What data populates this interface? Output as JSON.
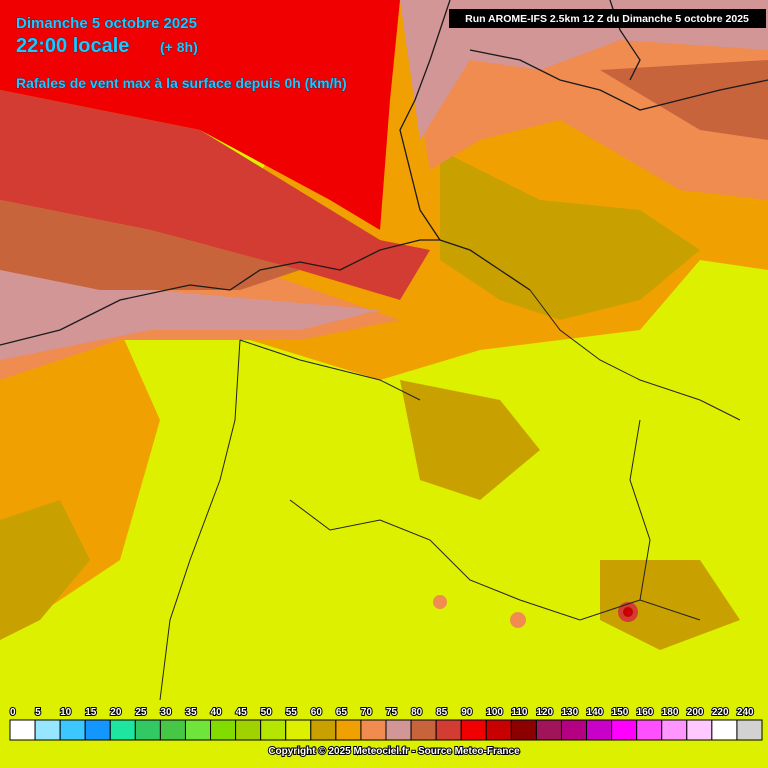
{
  "header": {
    "date": "Dimanche 5 octobre 2025",
    "time": "22:00 locale",
    "lead": "(+ 8h)",
    "parameter": "Rafales de vent max à la surface depuis 0h (km/h)"
  },
  "run_info": "Run AROME-IFS 2.5km 12 Z du Dimanche 5 octobre 2025",
  "legend": {
    "labels": [
      0,
      5,
      10,
      15,
      20,
      25,
      30,
      35,
      40,
      45,
      50,
      55,
      60,
      65,
      70,
      75,
      80,
      85,
      90,
      100,
      110,
      120,
      130,
      140,
      150,
      160,
      180,
      200,
      220,
      240
    ],
    "colors": [
      "#ffffff",
      "#96e6ff",
      "#3cc8ff",
      "#1496ff",
      "#1ee6a0",
      "#32c864",
      "#46c846",
      "#6fe43a",
      "#82dc00",
      "#a0d200",
      "#b4e600",
      "#dcf000",
      "#c8a000",
      "#f0a000",
      "#f08c50",
      "#d29696",
      "#c8643c",
      "#d23c32",
      "#f00000",
      "#c80000",
      "#8c0000",
      "#a0145a",
      "#b40082",
      "#c800c8",
      "#ff00ff",
      "#ff50ff",
      "#ff96ff",
      "#ffc8ff",
      "#ffffff",
      "#d2d2d2"
    ]
  },
  "copyright": "Copyright © 2025 Meteociel.fr - Source Meteo-France"
}
